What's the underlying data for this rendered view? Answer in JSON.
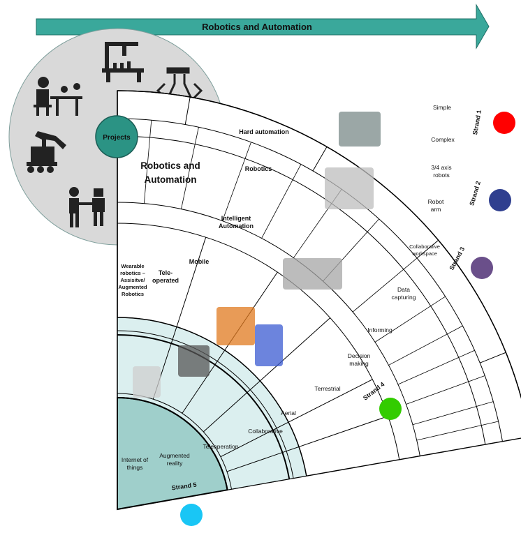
{
  "banner": {
    "title": "Robotics and Automation"
  },
  "projects": {
    "label": "Projects"
  },
  "core": {
    "line1": "Robotics and",
    "line2": "Automation"
  },
  "segments": [
    {
      "label": "Hard automation"
    },
    {
      "label": "Robotics"
    },
    {
      "line1": "Intelligent",
      "line2": "Automation"
    },
    {
      "label": "Mobile"
    },
    {
      "line1": "Tele-",
      "line2": "operated"
    },
    {
      "line1": "Wearable",
      "line2": "robotics –",
      "line3": "Assisitve/",
      "line4": "Augmented",
      "line5": "Robotics"
    }
  ],
  "outer_items": [
    {
      "line1": "Simple"
    },
    {
      "line1": "Complex"
    },
    {
      "line1": "3/4 axis",
      "line2": "robots"
    },
    {
      "line1": "Robot",
      "line2": "arm"
    },
    {
      "line1": "Collaborative",
      "line2": "workspace"
    },
    {
      "line1": "Data",
      "line2": "capturing"
    },
    {
      "line1": "Informing"
    },
    {
      "line1": "Decision",
      "line2": "making"
    },
    {
      "line1": "Terrestrial"
    },
    {
      "line1": "Aerial"
    },
    {
      "line1": "Collaborative"
    },
    {
      "line1": "Teleoperation"
    },
    {
      "line1": "Augmented",
      "line2": "reality"
    },
    {
      "line1": "Internet of",
      "line2": "things"
    }
  ],
  "strands": [
    {
      "label": "Strand 1",
      "color": "#ff0000"
    },
    {
      "label": "Strand 2",
      "color": "#2f3f8f"
    },
    {
      "label": "Strand 3",
      "color": "#6a4f8a"
    },
    {
      "label": "Strand 4",
      "color": "#33cc00"
    },
    {
      "label": "Strand 5",
      "color": "#19c6f5"
    }
  ],
  "colors": {
    "teal": "#3aa89b",
    "core_fill": "#9fcfcb",
    "segment_fill": "#dbefef",
    "circle_fill": "#d9d9d9",
    "dark_teal": "#2b9384"
  },
  "icons": [
    "pick-and-place-robot-icon",
    "flask-robot-icon",
    "engineer-desk-icon",
    "tracked-robot-arm-icon",
    "human-robot-handshake-icon"
  ],
  "photos": [
    "packaging-machine-photo",
    "dual-arm-robot-photo",
    "robot-arm-workcell-photo",
    "mobile-robot-photo",
    "humanoid-robot-photo",
    "teleoperated-robot-photo",
    "exoskeleton-robot-photo"
  ]
}
